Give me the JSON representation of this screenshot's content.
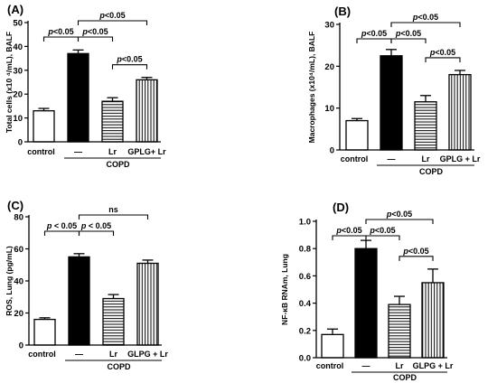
{
  "chart_data": [
    {
      "panel": "(A)",
      "type": "bar",
      "ylabel": "Total cells (x10 ⁴/mL), BALF",
      "ylim": [
        0,
        50
      ],
      "yticks": [
        0,
        10,
        20,
        30,
        40,
        50
      ],
      "categories": [
        "control",
        "—",
        "Lr",
        "GPLG+ Lr"
      ],
      "group_label": "COPD",
      "values": [
        13,
        37,
        17,
        26
      ],
      "errors": [
        1,
        1.5,
        1.5,
        1
      ],
      "fills": [
        "white",
        "black",
        "hlines",
        "vlines"
      ],
      "comparisons": [
        {
          "from": 0,
          "to": 1,
          "label": "p<0.05"
        },
        {
          "from": 1,
          "to": 2,
          "label": "p<0.05"
        },
        {
          "from": 1,
          "to": 3,
          "label": "p<0.05"
        },
        {
          "from": 2,
          "to": 3,
          "label": "p<0.05"
        }
      ]
    },
    {
      "panel": "(B)",
      "type": "bar",
      "ylabel": "Macrophages (x10⁴/mL), BALF",
      "ylim": [
        0,
        30
      ],
      "yticks": [
        0,
        10,
        20,
        30
      ],
      "categories": [
        "control",
        "—",
        "Lr",
        "GPLG + Lr"
      ],
      "group_label": "COPD",
      "values": [
        7,
        22.5,
        11.5,
        18
      ],
      "errors": [
        0.5,
        1.5,
        1.5,
        1
      ],
      "fills": [
        "white",
        "black",
        "hlines",
        "vlines"
      ],
      "comparisons": [
        {
          "from": 0,
          "to": 1,
          "label": "p<0.05"
        },
        {
          "from": 1,
          "to": 2,
          "label": "p<0.05"
        },
        {
          "from": 1,
          "to": 3,
          "label": "p<0.05"
        },
        {
          "from": 2,
          "to": 3,
          "label": "p<0.05"
        }
      ]
    },
    {
      "panel": "(C)",
      "type": "bar",
      "ylabel": "ROS, Lung (pg/mL)",
      "ylim": [
        0,
        80
      ],
      "yticks": [
        0,
        20,
        40,
        60,
        80
      ],
      "categories": [
        "control",
        "—",
        "Lr",
        "GLPG + Lr"
      ],
      "group_label": "COPD",
      "values": [
        16,
        55,
        29,
        51
      ],
      "errors": [
        1,
        2,
        2.5,
        2
      ],
      "fills": [
        "white",
        "black",
        "hlines",
        "vlines"
      ],
      "comparisons": [
        {
          "from": 0,
          "to": 1,
          "label": "p < 0.05"
        },
        {
          "from": 1,
          "to": 2,
          "label": "p < 0.05"
        },
        {
          "from": 1,
          "to": 3,
          "label": "ns"
        }
      ]
    },
    {
      "panel": "(D)",
      "type": "bar",
      "ylabel": "NF-κB RNAm, Lung",
      "ylim": [
        0,
        1.0
      ],
      "yticks": [
        0.0,
        0.2,
        0.4,
        0.6,
        0.8,
        1.0
      ],
      "tick_decimals": 1,
      "categories": [
        "control",
        "—",
        "Lr",
        "GLPG + Lr"
      ],
      "group_label": "COPD",
      "values": [
        0.17,
        0.8,
        0.39,
        0.55
      ],
      "errors": [
        0.04,
        0.06,
        0.06,
        0.1
      ],
      "fills": [
        "white",
        "black",
        "hlines",
        "vlines"
      ],
      "comparisons": [
        {
          "from": 0,
          "to": 1,
          "label": "p<0.05"
        },
        {
          "from": 1,
          "to": 2,
          "label": "p<0.05"
        },
        {
          "from": 1,
          "to": 3,
          "label": "p<0.05"
        },
        {
          "from": 2,
          "to": 3,
          "label": "p<0.05"
        }
      ]
    }
  ]
}
